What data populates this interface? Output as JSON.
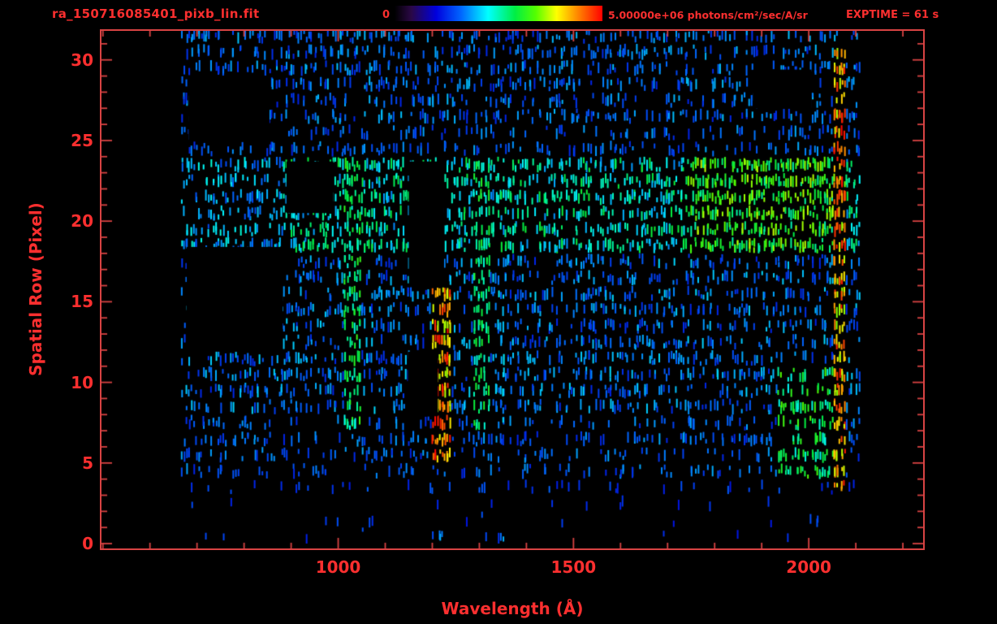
{
  "header": {
    "title": "ra_150716085401_pixb_lin.fit",
    "colorbar_min": "0",
    "colorbar_max": "5.00000e+06 photons/cm²/sec/A/sr",
    "exptime": "EXPTIME = 61 s"
  },
  "colors": {
    "axis": "#d84343",
    "label": "#fb2f2f",
    "background": "#000000"
  },
  "chart_data": {
    "type": "heatmap",
    "title": "ra_150716085401_pixb_lin.fit",
    "xlabel": "Wavelength (Å)",
    "ylabel": "Spatial Row (Pixel)",
    "xlim": [
      497,
      2243
    ],
    "ylim": [
      -0.3,
      31.8
    ],
    "x_major_ticks": [
      1000,
      1500,
      2000
    ],
    "x_minor_step": 100,
    "y_major_ticks": [
      0,
      5,
      10,
      15,
      20,
      25,
      30
    ],
    "y_minor_step": 1,
    "grid": false,
    "colorbar": {
      "min": 0,
      "max": 5000000,
      "min_label": "0",
      "max_label": "5.00000e+06",
      "units": "photons/cm²/sec/A/sr",
      "stops": [
        [
          0.0,
          "#000000"
        ],
        [
          0.08,
          "#2a0845"
        ],
        [
          0.2,
          "#0000dd"
        ],
        [
          0.32,
          "#0066ff"
        ],
        [
          0.45,
          "#00ffff"
        ],
        [
          0.58,
          "#00ee44"
        ],
        [
          0.68,
          "#55ff00"
        ],
        [
          0.78,
          "#ffff00"
        ],
        [
          0.88,
          "#ff8800"
        ],
        [
          1.0,
          "#ff0000"
        ]
      ]
    },
    "exptime_seconds": 61,
    "data_extent": {
      "x": [
        665,
        2105
      ],
      "rows": [
        0,
        31.5
      ]
    },
    "row_density_bands": [
      {
        "rows": [
          0,
          3
        ],
        "density": 0.02,
        "intensity": [
          0.22,
          0.3
        ]
      },
      {
        "rows": [
          3,
          4.5
        ],
        "density": 0.1,
        "intensity": [
          0.22,
          0.32
        ]
      },
      {
        "rows": [
          4.5,
          8
        ],
        "density": 0.28,
        "intensity": [
          0.24,
          0.38
        ]
      },
      {
        "rows": [
          8,
          18
        ],
        "density": 0.38,
        "intensity": [
          0.24,
          0.42
        ]
      },
      {
        "rows": [
          18,
          24
        ],
        "density": 0.5,
        "intensity": [
          0.28,
          0.48
        ]
      },
      {
        "rows": [
          24,
          26
        ],
        "density": 0.3,
        "intensity": [
          0.24,
          0.38
        ]
      },
      {
        "rows": [
          26,
          32
        ],
        "density": 0.38,
        "intensity": [
          0.24,
          0.4
        ]
      }
    ],
    "features": [
      {
        "name": "upper-band-green",
        "x": [
          880,
          2100
        ],
        "rows": [
          18.5,
          23.7
        ],
        "density": 0.55,
        "intensity": [
          0.35,
          0.6
        ]
      },
      {
        "name": "line-1030",
        "x": [
          1010,
          1045
        ],
        "rows": [
          7.0,
          23.5
        ],
        "density": 0.7,
        "intensity": [
          0.45,
          0.65
        ]
      },
      {
        "name": "lyman-alpha-line-1216",
        "x": [
          1195,
          1235
        ],
        "rows": [
          5.2,
          16.2
        ],
        "density": 0.97,
        "intensity": [
          0.7,
          1.0
        ]
      },
      {
        "name": "line-1300",
        "x": [
          1285,
          1320
        ],
        "rows": [
          7.5,
          23.5
        ],
        "density": 0.75,
        "intensity": [
          0.45,
          0.62
        ]
      },
      {
        "name": "line-1334",
        "x": [
          1330,
          1350
        ],
        "rows": [
          7.5,
          23.5
        ],
        "density": 0.5,
        "intensity": [
          0.3,
          0.45
        ]
      },
      {
        "name": "green-patch-1800-2050",
        "x": [
          1740,
          2055
        ],
        "rows": [
          17.8,
          23.7
        ],
        "density": 0.75,
        "intensity": [
          0.5,
          0.75
        ]
      },
      {
        "name": "green-patch-right-low",
        "x": [
          1930,
          2060
        ],
        "rows": [
          4.5,
          10.5
        ],
        "density": 0.55,
        "intensity": [
          0.45,
          0.68
        ]
      },
      {
        "name": "red-edge-stripe",
        "x": [
          2052,
          2078
        ],
        "rows": [
          3.0,
          30.5
        ],
        "density": 0.85,
        "intensity": [
          0.7,
          1.0
        ]
      },
      {
        "name": "row0-dash-1215",
        "x": [
          1210,
          1220
        ],
        "rows": [
          0,
          1
        ],
        "density": 0.9,
        "intensity": [
          0.3,
          0.4
        ]
      },
      {
        "name": "row0-dash-1345",
        "x": [
          1340,
          1350
        ],
        "rows": [
          0,
          1
        ],
        "density": 0.9,
        "intensity": [
          0.3,
          0.4
        ]
      }
    ],
    "masked_regions": [
      {
        "x": [
          678,
          882
        ],
        "rows": [
          11.9,
          18.4
        ]
      },
      {
        "x": [
          1150,
          1225
        ],
        "rows": [
          15.9,
          23.7
        ]
      },
      {
        "x": [
          1148,
          1212
        ],
        "rows": [
          7.9,
          11.9
        ]
      },
      {
        "x": [
          890,
          990
        ],
        "rows": [
          20.5,
          23.7
        ]
      },
      {
        "x": [
          682,
          854
        ],
        "rows": [
          25.0,
          29.0
        ]
      },
      {
        "x": [
          1882,
          2006
        ],
        "rows": [
          27.0,
          29.4
        ]
      }
    ]
  }
}
